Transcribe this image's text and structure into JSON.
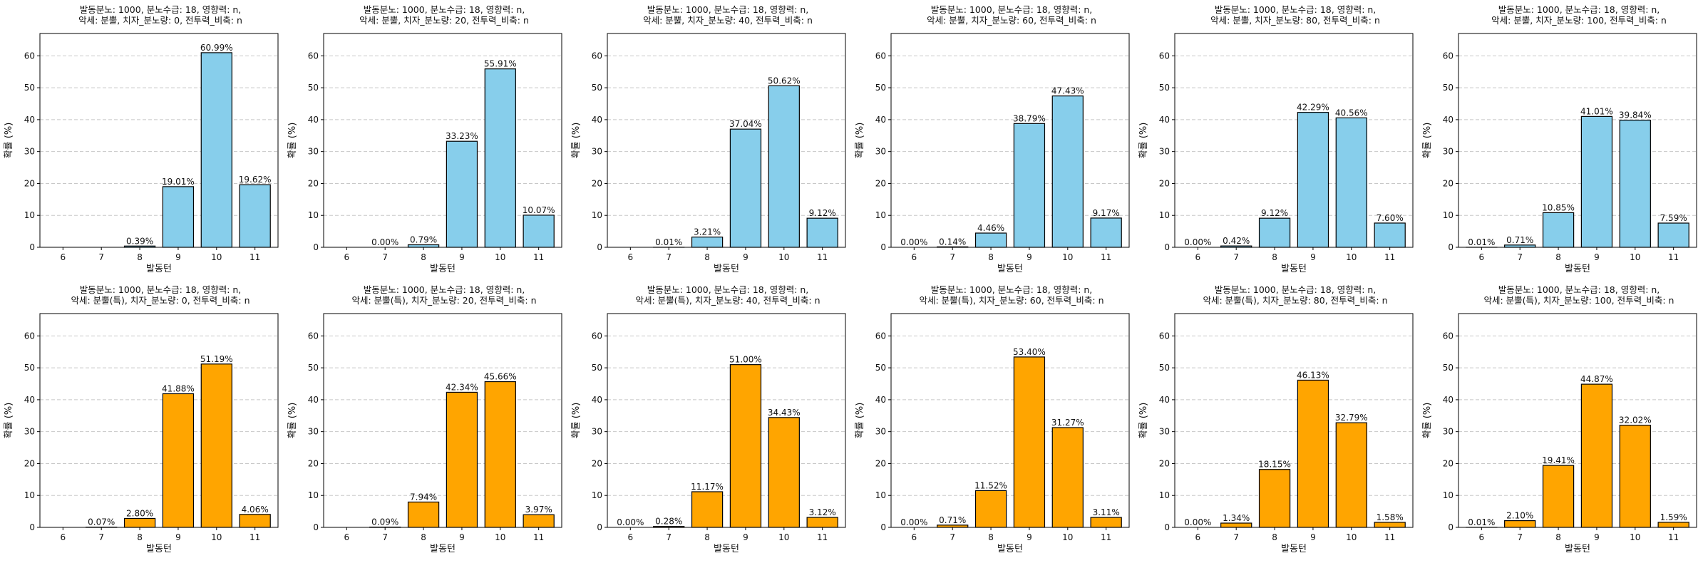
{
  "colors": {
    "top_row": "#87CEEB",
    "bottom_row": "#FFA500",
    "edge": "#000000",
    "grid": "#c8c8c8"
  },
  "chart_data": [
    {
      "type": "bar",
      "title_line1": "발동분노: 1000, 분노수급: 18, 영향력: n,",
      "title_line2": "악세: 분뿔, 치자_분노량: 0, 전투력_비축: n",
      "xlabel": "발동턴",
      "ylabel": "확률 (%)",
      "categories": [
        "6",
        "7",
        "8",
        "9",
        "10",
        "11"
      ],
      "values": [
        0,
        0,
        0.39,
        19.01,
        60.99,
        19.62
      ],
      "labels": [
        "",
        "",
        "0.39%",
        "19.01%",
        "60.99%",
        "19.62%"
      ],
      "ylim": [
        0,
        67
      ],
      "yticks": [
        0,
        10,
        20,
        30,
        40,
        50,
        60
      ],
      "grid": "y-dashed",
      "color": "top_row"
    },
    {
      "type": "bar",
      "title_line1": "발동분노: 1000, 분노수급: 18, 영향력: n,",
      "title_line2": "악세: 분뿔, 치자_분노량: 20, 전투력_비축: n",
      "xlabel": "발동턴",
      "ylabel": "확률 (%)",
      "categories": [
        "6",
        "7",
        "8",
        "9",
        "10",
        "11"
      ],
      "values": [
        0,
        0,
        0.79,
        33.23,
        55.91,
        10.07
      ],
      "labels": [
        "",
        "0.00%",
        "0.79%",
        "33.23%",
        "55.91%",
        "10.07%"
      ],
      "ylim": [
        0,
        67
      ],
      "yticks": [
        0,
        10,
        20,
        30,
        40,
        50,
        60
      ],
      "grid": "y-dashed",
      "color": "top_row"
    },
    {
      "type": "bar",
      "title_line1": "발동분노: 1000, 분노수급: 18, 영향력: n,",
      "title_line2": "악세: 분뿔, 치자_분노량: 40, 전투력_비축: n",
      "xlabel": "발동턴",
      "ylabel": "확률 (%)",
      "categories": [
        "6",
        "7",
        "8",
        "9",
        "10",
        "11"
      ],
      "values": [
        0,
        0.01,
        3.21,
        37.04,
        50.62,
        9.12
      ],
      "labels": [
        "",
        "0.01%",
        "3.21%",
        "37.04%",
        "50.62%",
        "9.12%"
      ],
      "ylim": [
        0,
        67
      ],
      "yticks": [
        0,
        10,
        20,
        30,
        40,
        50,
        60
      ],
      "grid": "y-dashed",
      "color": "top_row"
    },
    {
      "type": "bar",
      "title_line1": "발동분노: 1000, 분노수급: 18, 영향력: n,",
      "title_line2": "악세: 분뿔, 치자_분노량: 60, 전투력_비축: n",
      "xlabel": "발동턴",
      "ylabel": "확률 (%)",
      "categories": [
        "6",
        "7",
        "8",
        "9",
        "10",
        "11"
      ],
      "values": [
        0,
        0.14,
        4.46,
        38.79,
        47.43,
        9.17
      ],
      "labels": [
        "0.00%",
        "0.14%",
        "4.46%",
        "38.79%",
        "47.43%",
        "9.17%"
      ],
      "ylim": [
        0,
        67
      ],
      "yticks": [
        0,
        10,
        20,
        30,
        40,
        50,
        60
      ],
      "grid": "y-dashed",
      "color": "top_row"
    },
    {
      "type": "bar",
      "title_line1": "발동분노: 1000, 분노수급: 18, 영향력: n,",
      "title_line2": "악세: 분뿔, 치자_분노량: 80, 전투력_비축: n",
      "xlabel": "발동턴",
      "ylabel": "확률 (%)",
      "categories": [
        "6",
        "7",
        "8",
        "9",
        "10",
        "11"
      ],
      "values": [
        0,
        0.42,
        9.12,
        42.29,
        40.56,
        7.6
      ],
      "labels": [
        "0.00%",
        "0.42%",
        "9.12%",
        "42.29%",
        "40.56%",
        "7.60%"
      ],
      "ylim": [
        0,
        67
      ],
      "yticks": [
        0,
        10,
        20,
        30,
        40,
        50,
        60
      ],
      "grid": "y-dashed",
      "color": "top_row"
    },
    {
      "type": "bar",
      "title_line1": "발동분노: 1000, 분노수급: 18, 영향력: n,",
      "title_line2": "악세: 분뿔, 치자_분노량: 100, 전투력_비축: n",
      "xlabel": "발동턴",
      "ylabel": "확률 (%)",
      "categories": [
        "6",
        "7",
        "8",
        "9",
        "10",
        "11"
      ],
      "values": [
        0.01,
        0.71,
        10.85,
        41.01,
        39.84,
        7.59
      ],
      "labels": [
        "0.01%",
        "0.71%",
        "10.85%",
        "41.01%",
        "39.84%",
        "7.59%"
      ],
      "ylim": [
        0,
        67
      ],
      "yticks": [
        0,
        10,
        20,
        30,
        40,
        50,
        60
      ],
      "grid": "y-dashed",
      "color": "top_row"
    },
    {
      "type": "bar",
      "title_line1": "발동분노: 1000, 분노수급: 18, 영향력: n,",
      "title_line2": "악세: 분뿔(특), 치자_분노량: 0, 전투력_비축: n",
      "xlabel": "발동턴",
      "ylabel": "확률 (%)",
      "categories": [
        "6",
        "7",
        "8",
        "9",
        "10",
        "11"
      ],
      "values": [
        0,
        0.07,
        2.8,
        41.88,
        51.19,
        4.06
      ],
      "labels": [
        "",
        "0.07%",
        "2.80%",
        "41.88%",
        "51.19%",
        "4.06%"
      ],
      "ylim": [
        0,
        67
      ],
      "yticks": [
        0,
        10,
        20,
        30,
        40,
        50,
        60
      ],
      "grid": "y-dashed",
      "color": "bottom_row"
    },
    {
      "type": "bar",
      "title_line1": "발동분노: 1000, 분노수급: 18, 영향력: n,",
      "title_line2": "악세: 분뿔(특), 치자_분노량: 20, 전투력_비축: n",
      "xlabel": "발동턴",
      "ylabel": "확률 (%)",
      "categories": [
        "6",
        "7",
        "8",
        "9",
        "10",
        "11"
      ],
      "values": [
        0,
        0.09,
        7.94,
        42.34,
        45.66,
        3.97
      ],
      "labels": [
        "",
        "0.09%",
        "7.94%",
        "42.34%",
        "45.66%",
        "3.97%"
      ],
      "ylim": [
        0,
        67
      ],
      "yticks": [
        0,
        10,
        20,
        30,
        40,
        50,
        60
      ],
      "grid": "y-dashed",
      "color": "bottom_row"
    },
    {
      "type": "bar",
      "title_line1": "발동분노: 1000, 분노수급: 18, 영향력: n,",
      "title_line2": "악세: 분뿔(특), 치자_분노량: 40, 전투력_비축: n",
      "xlabel": "발동턴",
      "ylabel": "확률 (%)",
      "categories": [
        "6",
        "7",
        "8",
        "9",
        "10",
        "11"
      ],
      "values": [
        0,
        0.28,
        11.17,
        51.0,
        34.43,
        3.12
      ],
      "labels": [
        "0.00%",
        "0.28%",
        "11.17%",
        "51.00%",
        "34.43%",
        "3.12%"
      ],
      "ylim": [
        0,
        67
      ],
      "yticks": [
        0,
        10,
        20,
        30,
        40,
        50,
        60
      ],
      "grid": "y-dashed",
      "color": "bottom_row"
    },
    {
      "type": "bar",
      "title_line1": "발동분노: 1000, 분노수급: 18, 영향력: n,",
      "title_line2": "악세: 분뿔(특), 치자_분노량: 60, 전투력_비축: n",
      "xlabel": "발동턴",
      "ylabel": "확률 (%)",
      "categories": [
        "6",
        "7",
        "8",
        "9",
        "10",
        "11"
      ],
      "values": [
        0,
        0.71,
        11.52,
        53.4,
        31.27,
        3.11
      ],
      "labels": [
        "0.00%",
        "0.71%",
        "11.52%",
        "53.40%",
        "31.27%",
        "3.11%"
      ],
      "ylim": [
        0,
        67
      ],
      "yticks": [
        0,
        10,
        20,
        30,
        40,
        50,
        60
      ],
      "grid": "y-dashed",
      "color": "bottom_row"
    },
    {
      "type": "bar",
      "title_line1": "발동분노: 1000, 분노수급: 18, 영향력: n,",
      "title_line2": "악세: 분뿔(특), 치자_분노량: 80, 전투력_비축: n",
      "xlabel": "발동턴",
      "ylabel": "확률 (%)",
      "categories": [
        "6",
        "7",
        "8",
        "9",
        "10",
        "11"
      ],
      "values": [
        0,
        1.34,
        18.15,
        46.13,
        32.79,
        1.58
      ],
      "labels": [
        "0.00%",
        "1.34%",
        "18.15%",
        "46.13%",
        "32.79%",
        "1.58%"
      ],
      "ylim": [
        0,
        67
      ],
      "yticks": [
        0,
        10,
        20,
        30,
        40,
        50,
        60
      ],
      "grid": "y-dashed",
      "color": "bottom_row"
    },
    {
      "type": "bar",
      "title_line1": "발동분노: 1000, 분노수급: 18, 영향력: n,",
      "title_line2": "악세: 분뿔(특), 치자_분노량: 100, 전투력_비축: n",
      "xlabel": "발동턴",
      "ylabel": "확률 (%)",
      "categories": [
        "6",
        "7",
        "8",
        "9",
        "10",
        "11"
      ],
      "values": [
        0.01,
        2.1,
        19.41,
        44.87,
        32.02,
        1.59
      ],
      "labels": [
        "0.01%",
        "2.10%",
        "19.41%",
        "44.87%",
        "32.02%",
        "1.59%"
      ],
      "ylim": [
        0,
        67
      ],
      "yticks": [
        0,
        10,
        20,
        30,
        40,
        50,
        60
      ],
      "grid": "y-dashed",
      "color": "bottom_row"
    }
  ]
}
